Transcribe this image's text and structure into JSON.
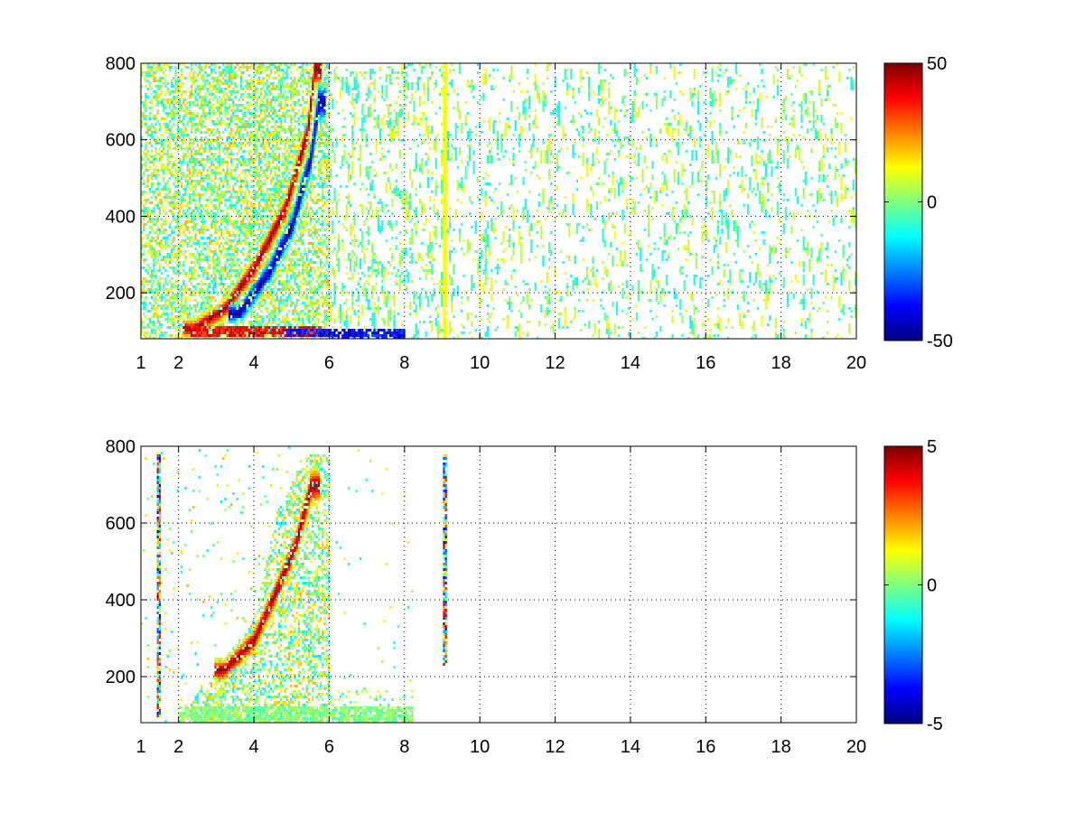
{
  "chart_data": [
    {
      "type": "heatmap",
      "title": "",
      "xlabel": "",
      "ylabel": "",
      "xlim": [
        1,
        20
      ],
      "ylim": [
        80,
        800
      ],
      "xticks": [
        1,
        2,
        4,
        6,
        8,
        10,
        12,
        14,
        16,
        18,
        20
      ],
      "yticks": [
        200,
        400,
        600,
        800
      ],
      "grid": true,
      "colormap": "jet",
      "clim": [
        -50,
        50
      ],
      "colorbar_ticks": [
        -50,
        0,
        50
      ],
      "features": [
        {
          "kind": "ridge",
          "sign": "positive",
          "points": [
            [
              2.4,
              110
            ],
            [
              3.2,
              160
            ],
            [
              4.0,
              270
            ],
            [
              4.8,
              420
            ],
            [
              5.4,
              620
            ],
            [
              5.6,
              790
            ]
          ]
        },
        {
          "kind": "ridge",
          "sign": "negative",
          "points": [
            [
              3.6,
              150
            ],
            [
              4.4,
              260
            ],
            [
              5.0,
              380
            ],
            [
              5.5,
              560
            ],
            [
              5.7,
              700
            ]
          ]
        },
        {
          "kind": "band",
          "sign": "positive",
          "x_range": [
            2.3,
            5.8
          ],
          "y_range": [
            90,
            120
          ]
        },
        {
          "kind": "band",
          "sign": "negative",
          "x_range": [
            4.8,
            8.0
          ],
          "y_range": [
            90,
            110
          ]
        },
        {
          "kind": "column",
          "sign": "positive",
          "x": 9.05,
          "y_range": [
            80,
            800
          ]
        }
      ]
    },
    {
      "type": "heatmap",
      "title": "",
      "xlabel": "",
      "ylabel": "",
      "xlim": [
        1,
        20
      ],
      "ylim": [
        80,
        800
      ],
      "xticks": [
        1,
        2,
        4,
        6,
        8,
        10,
        12,
        14,
        16,
        18,
        20
      ],
      "yticks": [
        200,
        400,
        600,
        800
      ],
      "grid": true,
      "colormap": "jet",
      "clim": [
        -5,
        5
      ],
      "colorbar_ticks": [
        -5,
        0,
        5
      ],
      "features": [
        {
          "kind": "ridge",
          "sign": "positive",
          "points": [
            [
              3.2,
              220
            ],
            [
              4.0,
              300
            ],
            [
              4.6,
              430
            ],
            [
              5.1,
              550
            ],
            [
              5.5,
              700
            ]
          ]
        },
        {
          "kind": "band",
          "sign": "zero",
          "x_range": [
            2.0,
            8.2
          ],
          "y_range": [
            85,
            125
          ]
        },
        {
          "kind": "column",
          "sign": "mixed",
          "x": 9.05,
          "y_range": [
            230,
            780
          ]
        },
        {
          "kind": "column",
          "sign": "mixed",
          "x": 1.45,
          "y_range": [
            100,
            790
          ]
        }
      ]
    }
  ]
}
